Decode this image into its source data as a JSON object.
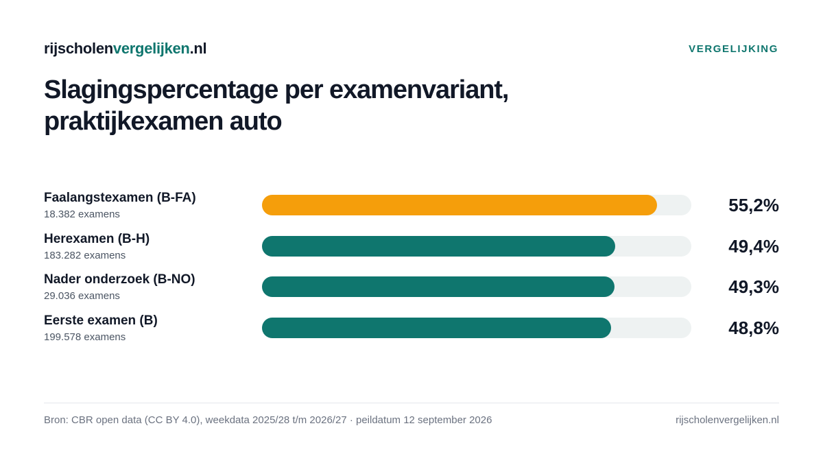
{
  "header": {
    "brand_part1": "rijscholen",
    "brand_part2": "vergelijken",
    "brand_part3": ".nl",
    "tag": "VERGELIJKING"
  },
  "chart_data": {
    "type": "bar",
    "orientation": "horizontal",
    "title_line1": "Slagingspercentage per examenvariant,",
    "title_line2": "praktijkexamen auto",
    "xlim": [
      0,
      60
    ],
    "categories": [
      "Faalangstexamen (B-FA)",
      "Herexamen (B-H)",
      "Nader onderzoek (B-NO)",
      "Eerste examen (B)"
    ],
    "sublabels": [
      "18.382 examens",
      "183.282 examens",
      "29.036 examens",
      "199.578 examens"
    ],
    "values": [
      55.2,
      49.4,
      49.3,
      48.8
    ],
    "value_labels": [
      "55,2%",
      "49,4%",
      "49,3%",
      "48,8%"
    ],
    "colors": [
      "#f59e0b",
      "#0f766e",
      "#0f766e",
      "#0f766e"
    ],
    "track_color": "#eef2f2",
    "grid": false,
    "legend": "none"
  },
  "footer": {
    "source": "Bron: CBR open data (CC BY 4.0), weekdata 2025/28 t/m 2026/27 · peildatum 12 september 2026",
    "site": "rijscholenvergelijken.nl"
  }
}
